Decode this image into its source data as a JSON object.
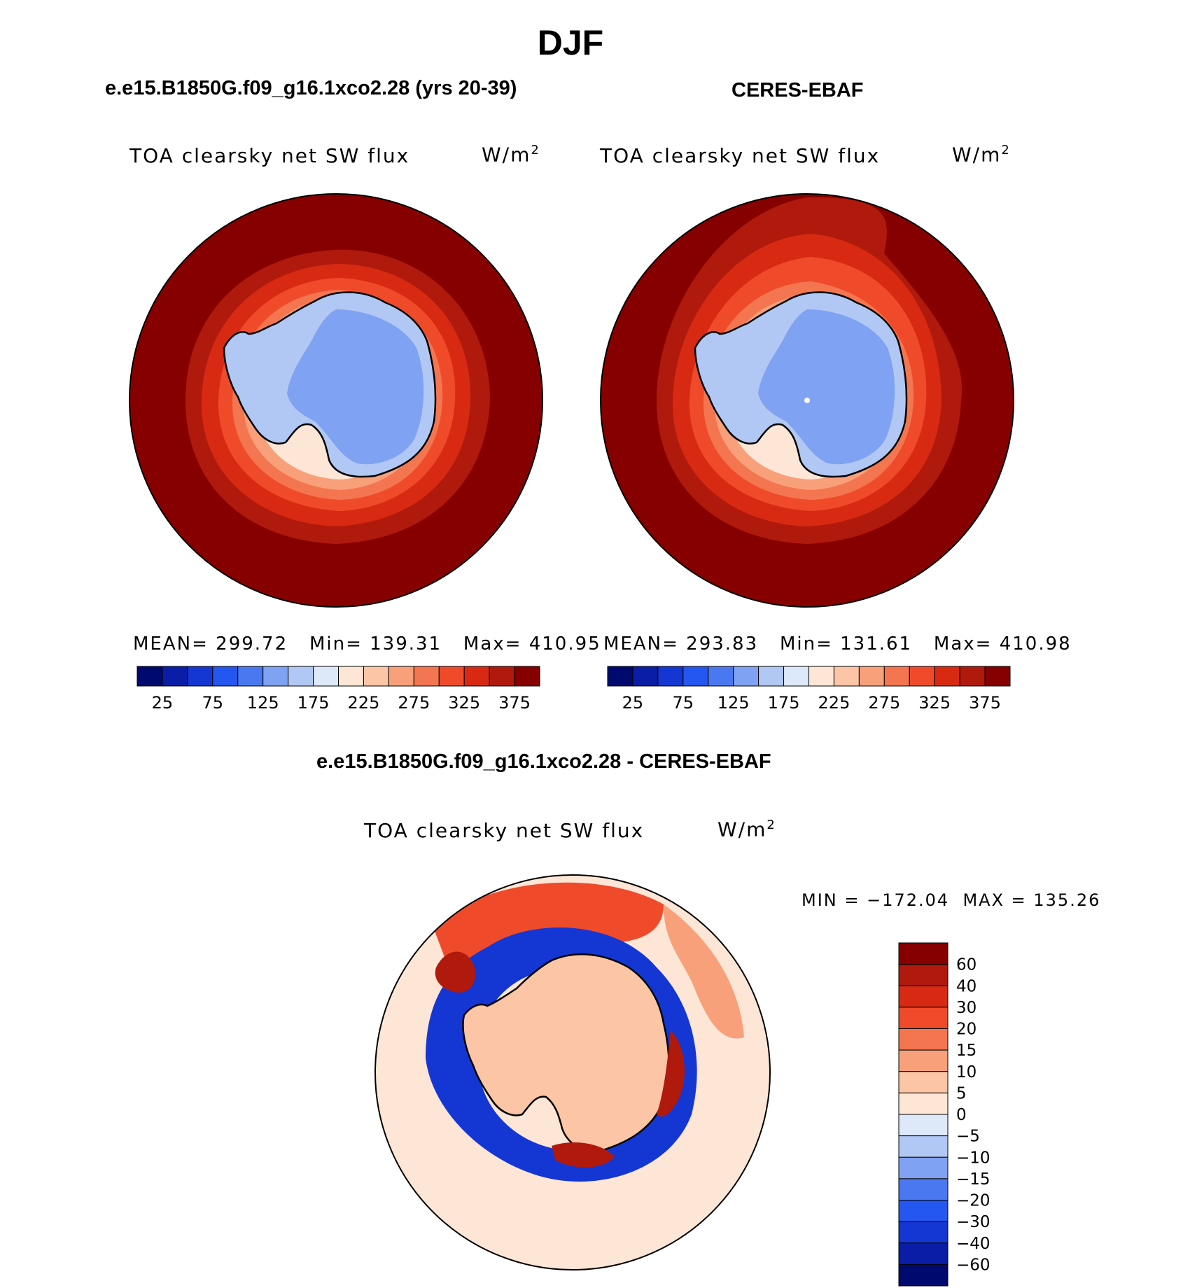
{
  "page_title": "DJF",
  "panels": {
    "model": {
      "title": "e.e15.B1850G.f09_g16.1xco2.28 (yrs 20-39)",
      "field": "TOA clearsky net SW flux",
      "units": "W/m",
      "units_sup": "2",
      "stats": {
        "mean_label": "MEAN=",
        "mean": "299.72",
        "min_label": "Min=",
        "min": "139.31",
        "max_label": "Max=",
        "max": "410.95"
      }
    },
    "obs": {
      "title": "CERES-EBAF",
      "field": "TOA clearsky net SW flux",
      "units": "W/m",
      "units_sup": "2",
      "stats": {
        "mean_label": "MEAN=",
        "mean": "293.83",
        "min_label": "Min=",
        "min": "131.61",
        "max_label": "Max=",
        "max": "410.98"
      }
    },
    "diff": {
      "title": "e.e15.B1850G.f09_g16.1xco2.28 - CERES-EBAF",
      "field": "TOA clearsky net SW flux",
      "units": "W/m",
      "units_sup": "2",
      "minmax": "MIN = −172.04  MAX = 135.26"
    }
  },
  "colors": {
    "abs_scale": [
      "#000a6e",
      "#0a1da6",
      "#1437d4",
      "#2456f0",
      "#4a78f0",
      "#7fa2f2",
      "#b2c8f4",
      "#dde9f8",
      "#fde6d6",
      "#fbc5a6",
      "#f8a07a",
      "#f47650",
      "#ef4b2b",
      "#d82a12",
      "#b01a0c",
      "#870000"
    ],
    "diff_scale": [
      "#000a6e",
      "#0a1da6",
      "#1437d4",
      "#2456f0",
      "#4a78f0",
      "#7fa2f2",
      "#b2c8f4",
      "#dde9f8",
      "#fde6d6",
      "#fbc5a6",
      "#f8a07a",
      "#f47650",
      "#ef4b2b",
      "#d82a12",
      "#b01a0c",
      "#870000"
    ]
  },
  "chart_data": [
    {
      "type": "heatmap",
      "projection": "south-polar stereographic",
      "title": "e.e15.B1850G.f09_g16.1xco2.28 (yrs 20-39)",
      "variable": "TOA clearsky net SW flux",
      "units": "W/m2",
      "colorbar_ticks": [
        "25",
        "75",
        "125",
        "175",
        "225",
        "275",
        "325",
        "375"
      ],
      "levels": [
        25,
        50,
        75,
        100,
        125,
        150,
        175,
        200,
        225,
        250,
        275,
        300,
        325,
        350,
        375
      ],
      "mean": 299.72,
      "min": 139.31,
      "max": 410.95
    },
    {
      "type": "heatmap",
      "projection": "south-polar stereographic",
      "title": "CERES-EBAF",
      "variable": "TOA clearsky net SW flux",
      "units": "W/m2",
      "colorbar_ticks": [
        "25",
        "75",
        "125",
        "175",
        "225",
        "275",
        "325",
        "375"
      ],
      "levels": [
        25,
        50,
        75,
        100,
        125,
        150,
        175,
        200,
        225,
        250,
        275,
        300,
        325,
        350,
        375
      ],
      "mean": 293.83,
      "min": 131.61,
      "max": 410.98
    },
    {
      "type": "heatmap",
      "projection": "south-polar stereographic",
      "title": "e.e15.B1850G.f09_g16.1xco2.28 - CERES-EBAF",
      "variable": "TOA clearsky net SW flux",
      "units": "W/m2",
      "colorbar_ticks": [
        "60",
        "40",
        "30",
        "20",
        "15",
        "10",
        "5",
        "0",
        "−5",
        "−10",
        "−15",
        "−20",
        "−30",
        "−40",
        "−60"
      ],
      "min": -172.04,
      "max": 135.26
    }
  ]
}
